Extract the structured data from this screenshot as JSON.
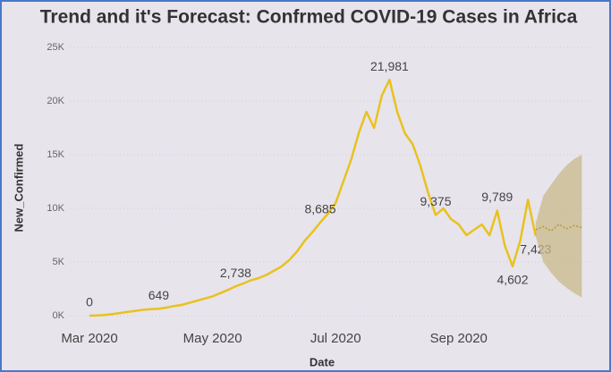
{
  "chart_data": {
    "type": "line",
    "title": "Trend and it's Forecast: Confrmed COVID-19 Cases in Africa",
    "x_label": "Date",
    "y_label": "New_Confirmed",
    "categories": [
      "Mar 2020",
      null,
      null,
      null,
      null,
      null,
      null,
      null,
      null,
      null,
      null,
      null,
      null,
      null,
      null,
      null,
      "May 2020",
      null,
      null,
      null,
      null,
      null,
      null,
      null,
      null,
      null,
      null,
      null,
      null,
      null,
      null,
      null,
      "Jul 2020",
      null,
      null,
      null,
      null,
      null,
      null,
      null,
      null,
      null,
      null,
      null,
      null,
      null,
      null,
      null,
      "Sep 2020",
      null,
      null,
      null,
      null,
      null,
      null,
      null,
      null,
      null,
      null,
      null,
      null,
      null,
      null,
      null,
      null
    ],
    "series": [
      {
        "color": "#e8c21e",
        "values": [
          0,
          20,
          60,
          150,
          250,
          350,
          450,
          550,
          600,
          649,
          750,
          900,
          1000,
          1200,
          1400,
          1600,
          1800,
          2100,
          2400,
          2738,
          3000,
          3300,
          3500,
          3800,
          4200,
          4600,
          5200,
          6000,
          7000,
          7800,
          8685,
          9500,
          10500,
          12500,
          14500,
          17000,
          19000,
          17500,
          20500,
          21981,
          19000,
          17000,
          16000,
          14000,
          11500,
          9375,
          10000,
          9000,
          8500,
          7500,
          8000,
          8500,
          7500,
          9789,
          6500,
          4602,
          7000,
          10800,
          7423,
          null,
          null,
          null,
          null,
          null,
          null
        ],
        "value_labels": [
          "0",
          null,
          null,
          null,
          null,
          null,
          null,
          null,
          null,
          "649",
          null,
          null,
          null,
          null,
          null,
          null,
          null,
          null,
          null,
          "2,738",
          null,
          null,
          null,
          null,
          null,
          null,
          null,
          null,
          null,
          null,
          "8,685",
          null,
          null,
          null,
          null,
          null,
          null,
          null,
          null,
          "21,981",
          null,
          null,
          null,
          null,
          null,
          "9,375",
          null,
          null,
          null,
          null,
          null,
          null,
          null,
          "9,789",
          null,
          "4,602",
          null,
          null,
          "7,423",
          null,
          null,
          null,
          null,
          null,
          null
        ]
      },
      {
        "color": "#b89a2a",
        "dashed": true,
        "values": [
          null,
          null,
          null,
          null,
          null,
          null,
          null,
          null,
          null,
          null,
          null,
          null,
          null,
          null,
          null,
          null,
          null,
          null,
          null,
          null,
          null,
          null,
          null,
          null,
          null,
          null,
          null,
          null,
          null,
          null,
          null,
          null,
          null,
          null,
          null,
          null,
          null,
          null,
          null,
          null,
          null,
          null,
          null,
          null,
          null,
          null,
          null,
          null,
          null,
          null,
          null,
          null,
          null,
          null,
          null,
          null,
          null,
          null,
          8000,
          8300,
          7900,
          8500,
          8100,
          8400,
          8200
        ],
        "lower": [
          null,
          null,
          null,
          null,
          null,
          null,
          null,
          null,
          null,
          null,
          null,
          null,
          null,
          null,
          null,
          null,
          null,
          null,
          null,
          null,
          null,
          null,
          null,
          null,
          null,
          null,
          null,
          null,
          null,
          null,
          null,
          null,
          null,
          null,
          null,
          null,
          null,
          null,
          null,
          null,
          null,
          null,
          null,
          null,
          null,
          null,
          null,
          null,
          null,
          null,
          null,
          null,
          null,
          null,
          null,
          null,
          null,
          null,
          7400,
          5000,
          4000,
          3200,
          2600,
          2100,
          1700
        ],
        "upper": [
          null,
          null,
          null,
          null,
          null,
          null,
          null,
          null,
          null,
          null,
          null,
          null,
          null,
          null,
          null,
          null,
          null,
          null,
          null,
          null,
          null,
          null,
          null,
          null,
          null,
          null,
          null,
          null,
          null,
          null,
          null,
          null,
          null,
          null,
          null,
          null,
          null,
          null,
          null,
          null,
          null,
          null,
          null,
          null,
          null,
          null,
          null,
          null,
          null,
          null,
          null,
          null,
          null,
          null,
          null,
          null,
          null,
          null,
          8600,
          11200,
          12200,
          13200,
          14000,
          14600,
          15000
        ],
        "band_color": "#c8b98a"
      }
    ],
    "ylim": [
      0,
      25000
    ],
    "yticks": [
      {
        "value": 0,
        "label": "0K"
      },
      {
        "value": 5000,
        "label": "5K"
      },
      {
        "value": 10000,
        "label": "10K"
      },
      {
        "value": 15000,
        "label": "15K"
      },
      {
        "value": 20000,
        "label": "20K"
      },
      {
        "value": 25000,
        "label": "25K"
      }
    ],
    "grid": true
  }
}
